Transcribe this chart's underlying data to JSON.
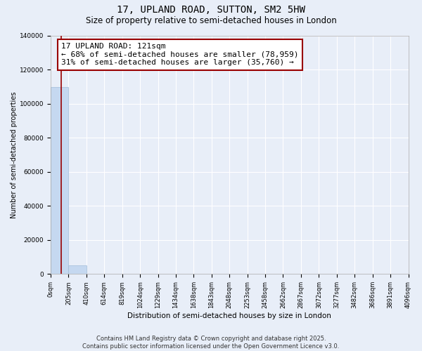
{
  "title": "17, UPLAND ROAD, SUTTON, SM2 5HW",
  "subtitle": "Size of property relative to semi-detached houses in London",
  "xlabel": "Distribution of semi-detached houses by size in London",
  "ylabel": "Number of semi-detached properties",
  "property_size": 121,
  "annotation_line1": "17 UPLAND ROAD: 121sqm",
  "annotation_line2": "← 68% of semi-detached houses are smaller (78,959)",
  "annotation_line3": "31% of semi-detached houses are larger (35,760) →",
  "bin_edges": [
    0,
    205,
    410,
    614,
    819,
    1024,
    1229,
    1434,
    1638,
    1843,
    2048,
    2253,
    2458,
    2662,
    2867,
    3072,
    3277,
    3482,
    3686,
    3891,
    4096
  ],
  "bar_heights": [
    110000,
    5000,
    200,
    50,
    20,
    10,
    5,
    3,
    2,
    1,
    1,
    1,
    0,
    0,
    0,
    0,
    0,
    0,
    0,
    0
  ],
  "bar_color": "#c5d8f0",
  "bar_edgecolor": "#a0bcd8",
  "line_color": "#990000",
  "ylim": [
    0,
    140000
  ],
  "yticks": [
    0,
    20000,
    40000,
    60000,
    80000,
    100000,
    120000,
    140000
  ],
  "background_color": "#e8eef8",
  "grid_color": "#ffffff",
  "footer": "Contains HM Land Registry data © Crown copyright and database right 2025.\nContains public sector information licensed under the Open Government Licence v3.0.",
  "title_fontsize": 10,
  "subtitle_fontsize": 8.5,
  "annotation_fontsize": 8,
  "footer_fontsize": 6,
  "ylabel_fontsize": 7,
  "xlabel_fontsize": 7.5,
  "tick_fontsize": 6,
  "ytick_fontsize": 6.5
}
